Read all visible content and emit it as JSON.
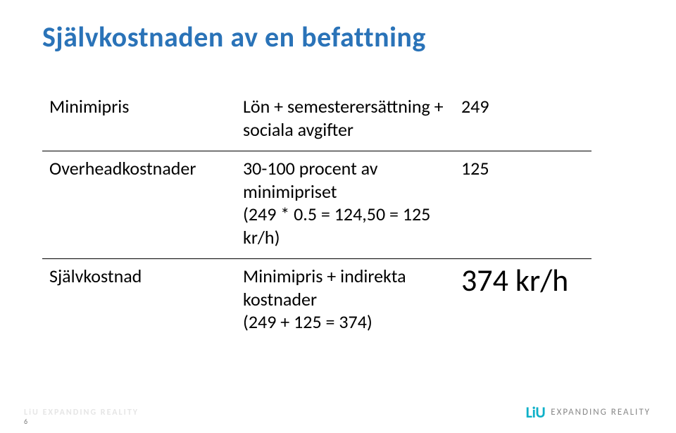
{
  "title": "Självkostnaden av en befattning",
  "table": {
    "rows": [
      {
        "label": "Minimipris",
        "desc": "Lön + semesterersättning + sociala avgifter",
        "value": "249",
        "label_color": "#ffffff",
        "desc_color": "#ffffff",
        "value_color": "#000000"
      },
      {
        "label": "Overheadkostnader",
        "desc": "30-100 procent av minimipriset\n(249 * 0.5 = 124,50 = 125 kr/h)",
        "value": "125",
        "label_color": "#000000",
        "desc_color": "#000000",
        "value_color": "#000000"
      },
      {
        "label": "Självkostnad",
        "desc": "Minimipris + indirekta kostnader\n(249 + 125 = 374)",
        "value": "374 kr/h",
        "label_color": "#000000",
        "desc_color": "#000000",
        "value_color": "#000000",
        "value_large": true
      }
    ]
  },
  "footer": {
    "page_number": "6",
    "faded_text": "LiU EXPANDING REALITY",
    "logo_main": "LiU",
    "logo_tagline": "EXPANDING REALITY"
  },
  "style": {
    "title_color": "#2a73b8",
    "title_fontsize": 40,
    "body_fontsize": 26,
    "result_fontsize": 44,
    "border_color": "#000000",
    "background": "#ffffff",
    "logo_color": "#0db0c8"
  }
}
